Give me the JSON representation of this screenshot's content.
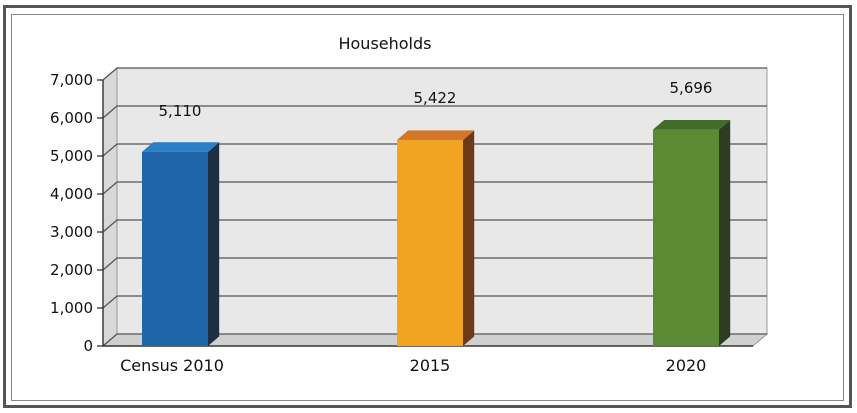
{
  "chart_data": {
    "type": "bar",
    "title": "Households",
    "categories": [
      "Census 2010",
      "2015",
      "2020"
    ],
    "values": [
      5110,
      5422,
      5696
    ],
    "value_labels": [
      "5,110",
      "5,422",
      "5,696"
    ],
    "ylim": [
      0,
      7000
    ],
    "yticks": [
      0,
      1000,
      2000,
      3000,
      4000,
      5000,
      6000,
      7000
    ],
    "ytick_labels": [
      "0",
      "1,000",
      "2,000",
      "3,000",
      "4,000",
      "5,000",
      "6,000",
      "7,000"
    ],
    "grid": true,
    "style": "3d",
    "colors": {
      "bars": [
        "#1f66a8",
        "#f0a421",
        "#5b8a35"
      ],
      "bar_tops": [
        "#2b7fc4",
        "#d4772a",
        "#416d2a"
      ],
      "bar_sides": [
        "#1e2f44",
        "#6b3a18",
        "#2e3d22"
      ],
      "plot_background": "#e8e8e8"
    }
  }
}
